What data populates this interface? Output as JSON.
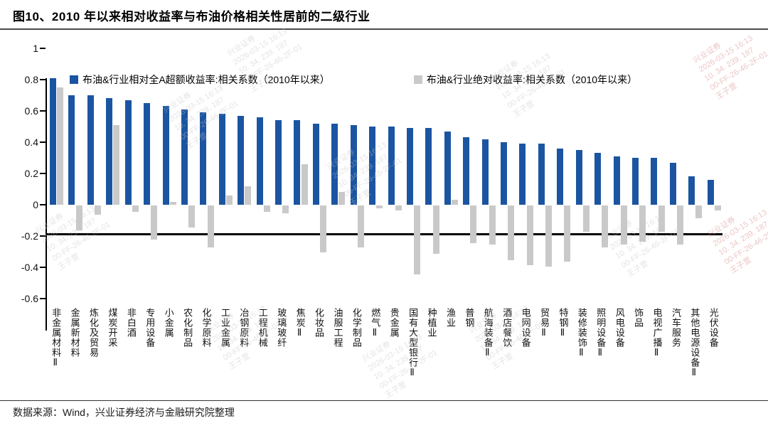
{
  "title": "图10、2010 年以来相对收益率与布油价格相关性居前的二级行业",
  "footer": {
    "source_text": "数据来源：Wind，兴业证券经济与金融研究院整理"
  },
  "colors": {
    "bar_blue": "#1b55a2",
    "bar_gray": "#c9c9c9",
    "axis": "#000000"
  },
  "watermark": {
    "lines": [
      "兴业证券",
      "2026-03-15 16:13",
      "10. 34. 239. 187",
      "00-FF-26-46-2F-01",
      "王子萱"
    ]
  },
  "chart_data": {
    "type": "bar",
    "title": "图10、2010 年以来相对收益率与布油价格相关性居前的二级行业",
    "xlabel": "",
    "ylabel": "",
    "ylim": [
      -0.6,
      1
    ],
    "yticks": [
      1,
      0.8,
      0.6,
      0.4,
      0.2,
      0,
      -0.2,
      -0.4,
      -0.6
    ],
    "ytick_labels": [
      "1",
      "0.8",
      "0.6",
      "0.4",
      "0.2",
      "0",
      "-0.2",
      "-0.4",
      "-0.6"
    ],
    "grid": false,
    "legend_position": "top",
    "categories": [
      "非金属材料Ⅱ",
      "金属新材料",
      "炼化及贸易",
      "煤炭开采",
      "非白酒",
      "专用设备",
      "小金属",
      "农化制品",
      "化学原料",
      "工业金属",
      "冶钢原料",
      "工程机械",
      "玻璃玻纤",
      "焦炭Ⅱ",
      "化妆品",
      "油服工程",
      "化学制品",
      "燃气Ⅱ",
      "贵金属",
      "国有大型银行Ⅱ",
      "种植业",
      "渔业",
      "普钢",
      "航海装备Ⅱ",
      "酒店餐饮",
      "电网设备",
      "贸易Ⅱ",
      "特钢Ⅱ",
      "装修装饰Ⅱ",
      "照明设备Ⅱ",
      "风电设备",
      "饰品",
      "电视广播Ⅱ",
      "汽车服务",
      "其他电源设备Ⅱ",
      "光伏设备"
    ],
    "series": [
      {
        "name": "布油&行业相对全A超额收益率:相关系数（2010年以来）",
        "color": "#1b55a2",
        "values": [
          0.81,
          0.7,
          0.7,
          0.68,
          0.67,
          0.65,
          0.63,
          0.61,
          0.59,
          0.58,
          0.57,
          0.56,
          0.54,
          0.54,
          0.52,
          0.52,
          0.51,
          0.5,
          0.5,
          0.49,
          0.49,
          0.47,
          0.43,
          0.42,
          0.4,
          0.39,
          0.39,
          0.36,
          0.35,
          0.33,
          0.31,
          0.3,
          0.3,
          0.27,
          0.18,
          0.16
        ]
      },
      {
        "name": "布油&行业绝对收益率:相关系数（2010年以来）",
        "color": "#c9c9c9",
        "values": [
          0.75,
          -0.16,
          -0.06,
          0.51,
          -0.04,
          -0.22,
          0.02,
          -0.14,
          -0.27,
          0.06,
          0.12,
          -0.04,
          -0.05,
          0.26,
          -0.3,
          0.08,
          -0.27,
          -0.02,
          -0.03,
          -0.44,
          -0.31,
          0.03,
          -0.24,
          -0.25,
          -0.35,
          -0.38,
          -0.39,
          -0.36,
          -0.17,
          -0.27,
          -0.25,
          -0.23,
          -0.17,
          -0.25,
          -0.08,
          -0.03
        ]
      }
    ]
  }
}
